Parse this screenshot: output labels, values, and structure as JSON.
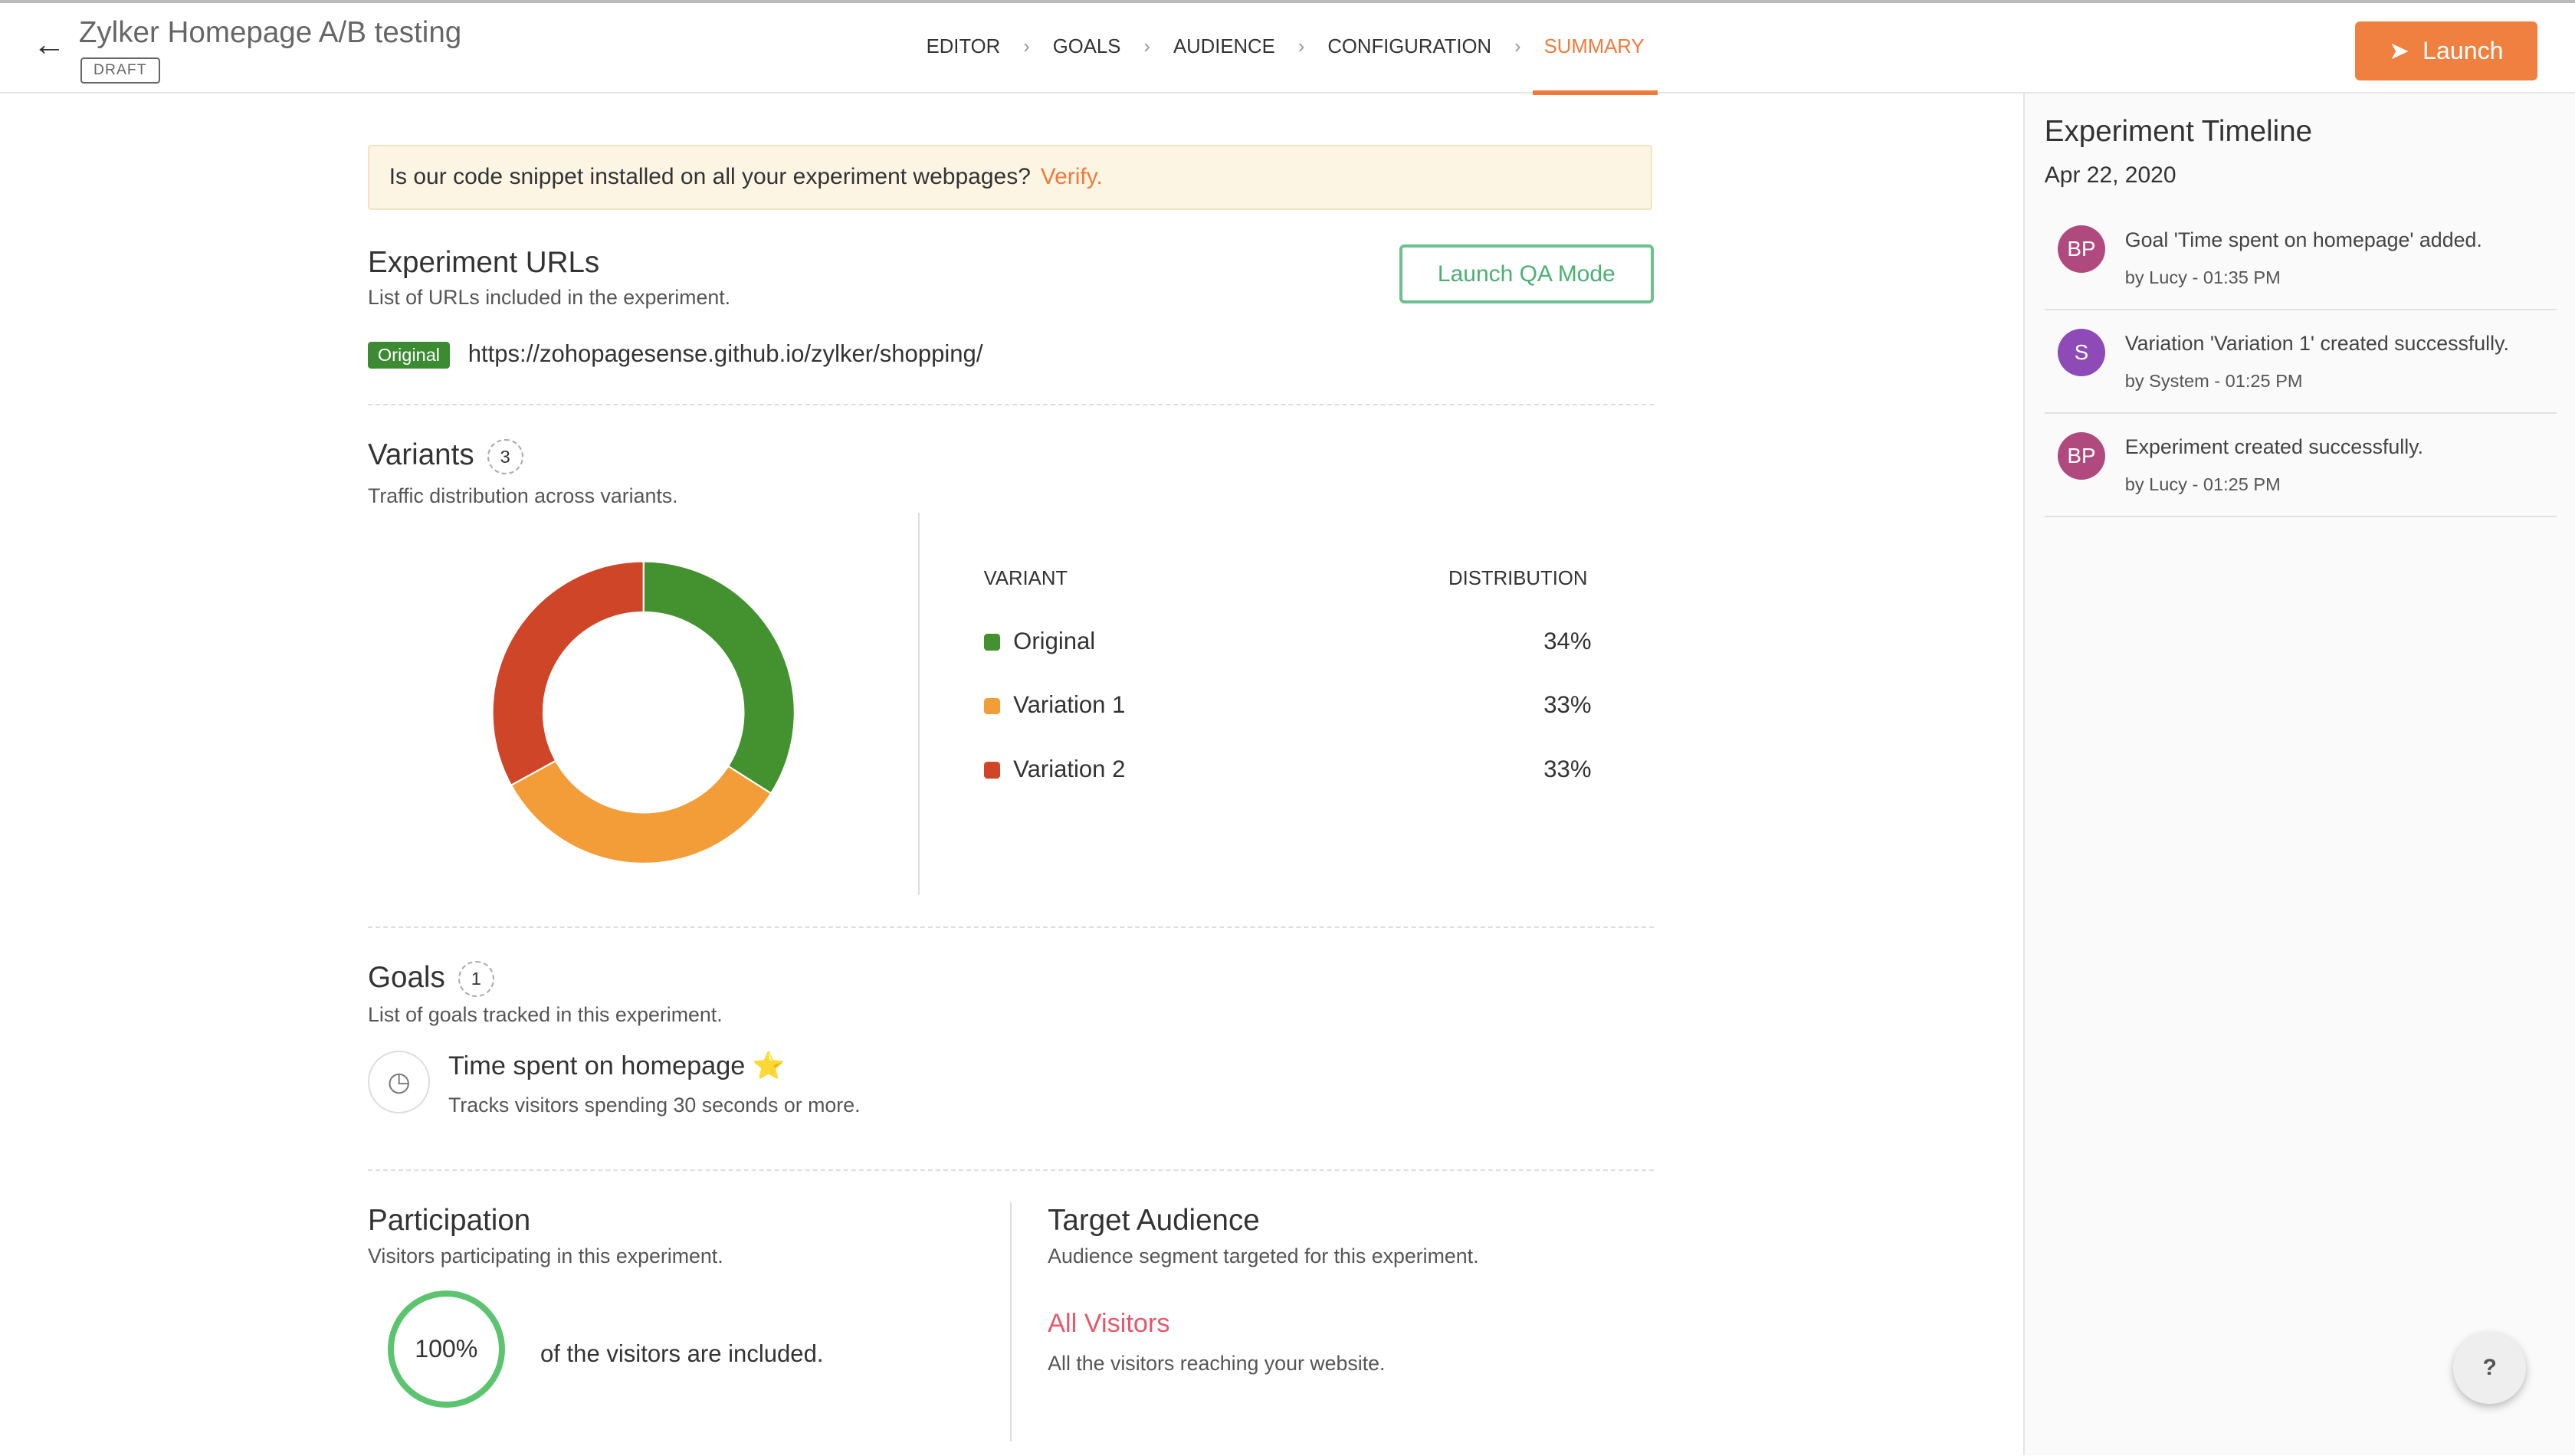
{
  "header": {
    "title": "Zylker Homepage A/B testing",
    "status": "DRAFT",
    "steps": [
      "EDITOR",
      "GOALS",
      "AUDIENCE",
      "CONFIGURATION",
      "SUMMARY"
    ],
    "active_step": "SUMMARY",
    "launch": "Launch"
  },
  "banner": {
    "text": "Is our code snippet installed on all your experiment webpages?",
    "link": "Verify."
  },
  "urls": {
    "title": "Experiment URLs",
    "subtitle": "List of URLs included in the experiment.",
    "qa_button": "Launch QA Mode",
    "badge": "Original",
    "url": "https://zohopagesense.github.io/zylker/shopping/"
  },
  "variants": {
    "title": "Variants",
    "count": "3",
    "subtitle": "Traffic distribution across variants.",
    "col_variant": "VARIANT",
    "col_distribution": "DISTRIBUTION",
    "items": [
      {
        "name": "Original",
        "pct": "34%",
        "value": 34,
        "color": "#43922f"
      },
      {
        "name": "Variation 1",
        "pct": "33%",
        "value": 33,
        "color": "#f29d38"
      },
      {
        "name": "Variation 2",
        "pct": "33%",
        "value": 33,
        "color": "#cf4528"
      }
    ]
  },
  "goals": {
    "title": "Goals",
    "count": "1",
    "subtitle": "List of goals tracked in this experiment.",
    "name": "Time spent on homepage",
    "star": "⭐",
    "desc": "Tracks visitors spending 30 seconds or more."
  },
  "participation": {
    "title": "Participation",
    "subtitle": "Visitors participating in this experiment.",
    "value": "100%",
    "text": "of the visitors are included."
  },
  "audience": {
    "title": "Target Audience",
    "subtitle": "Audience segment targeted for this experiment.",
    "segment": "All Visitors",
    "desc": "All the visitors reaching your website."
  },
  "timeline": {
    "title": "Experiment Timeline",
    "date": "Apr 22, 2020",
    "items": [
      {
        "initials": "BP",
        "color": "#b04a7e",
        "text": "Goal 'Time spent on homepage' added.",
        "meta": "by Lucy - 01:35 PM"
      },
      {
        "initials": "S",
        "color": "#8e4bb8",
        "text": "Variation 'Variation 1' created successfully.",
        "meta": "by System - 01:25 PM"
      },
      {
        "initials": "BP",
        "color": "#b04a7e",
        "text": "Experiment created successfully.",
        "meta": "by Lucy - 01:25 PM"
      }
    ]
  },
  "help": "?"
}
